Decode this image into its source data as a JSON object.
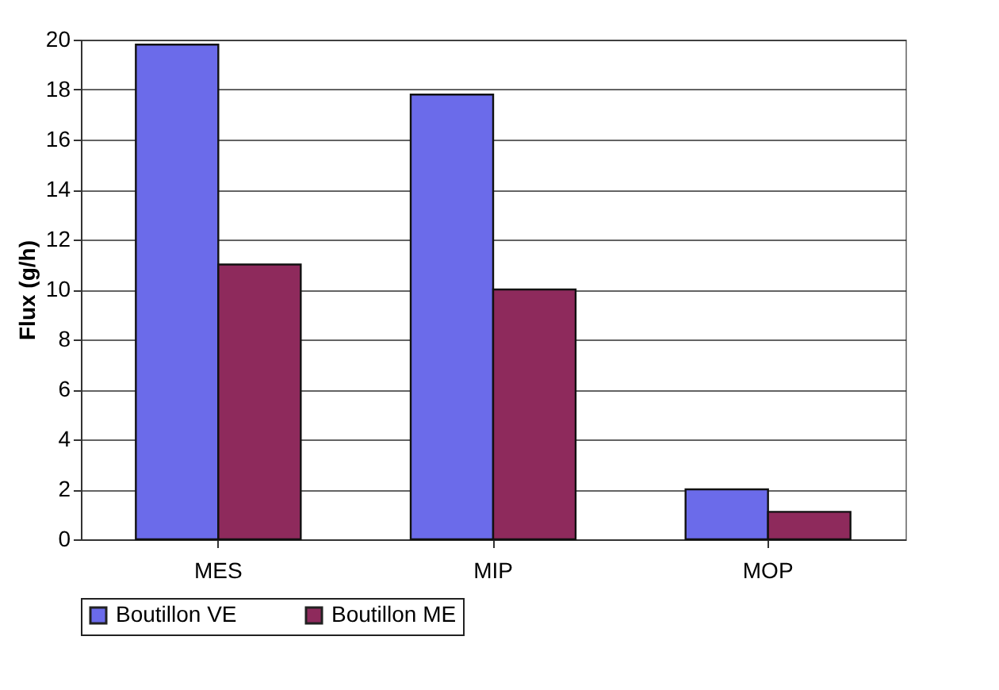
{
  "chart_data": {
    "type": "bar",
    "ylabel": "Flux (g/h)",
    "categories": [
      "MES",
      "MIP",
      "MOP"
    ],
    "series": [
      {
        "name": "Boutillon VE",
        "color": "#6b6bea",
        "values": [
          19.8,
          17.8,
          2.0
        ]
      },
      {
        "name": "Boutillon ME",
        "color": "#8e2a5c",
        "values": [
          11.0,
          10.0,
          1.1
        ]
      }
    ],
    "ylim": [
      0,
      20
    ],
    "yticks": [
      0,
      2,
      4,
      6,
      8,
      10,
      12,
      14,
      16,
      18,
      20
    ],
    "grid": "y",
    "legend": "bottom"
  }
}
